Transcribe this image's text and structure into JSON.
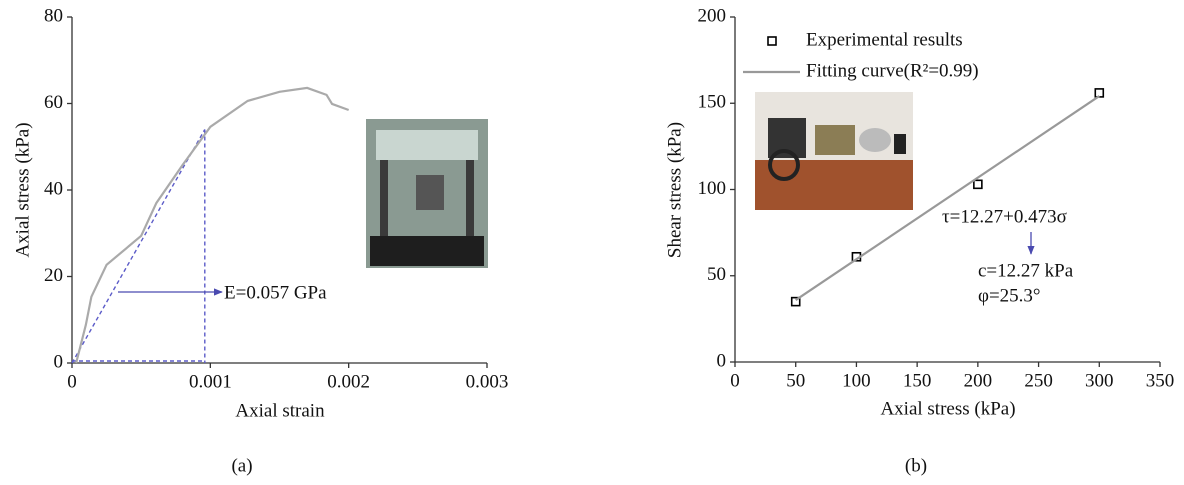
{
  "chart_data": [
    {
      "type": "line",
      "label": "(a)",
      "x_label": "Axial strain",
      "y_label": "Axial stress (kPa)",
      "x": [
        3e-05,
        0.0001,
        0.00014,
        0.00025,
        0.0005,
        0.00061,
        0.0008,
        0.001,
        0.00127,
        0.0015,
        0.0017,
        0.00184,
        0.00188,
        0.002
      ],
      "series": [
        {
          "color": "#aaaaaa",
          "values": [
            0,
            8.8,
            15.3,
            22.7,
            29.4,
            37,
            45.8,
            54.6,
            60.6,
            62.7,
            63.6,
            62,
            59.9,
            58.5
          ]
        }
      ],
      "secant": {
        "x": 0.00096,
        "y": 54,
        "color": "#5b5bc8"
      },
      "annotations": [
        "E=0.057 GPa"
      ],
      "xlim": [
        0,
        0.003
      ],
      "xticks": [
        0,
        0.001,
        0.002,
        0.003
      ],
      "ylim": [
        0,
        80
      ],
      "yticks": [
        0,
        20,
        40,
        60,
        80
      ]
    },
    {
      "type": "scatter",
      "label": "(b)",
      "x_label": "Axial stress (kPa)",
      "y_label": "Shear stress (kPa)",
      "series": [
        {
          "name": "Experimental results",
          "mode": "markers",
          "color": "#000000",
          "x": [
            50,
            100,
            200,
            300
          ],
          "values": [
            35,
            61,
            103,
            156
          ]
        },
        {
          "name": "Fitting curve(R²=0.99)",
          "mode": "line",
          "color": "#999999",
          "x": [
            50,
            300
          ],
          "values": [
            35.92,
            154.17
          ]
        }
      ],
      "annotations": [
        "τ=12.27+0.473σ",
        "c=12.27 kPa",
        "φ=25.3°"
      ],
      "xlim": [
        0,
        350
      ],
      "xticks": [
        0,
        50,
        100,
        150,
        200,
        250,
        300,
        350
      ],
      "ylim": [
        0,
        200
      ],
      "yticks": [
        0,
        50,
        100,
        150,
        200
      ]
    }
  ]
}
